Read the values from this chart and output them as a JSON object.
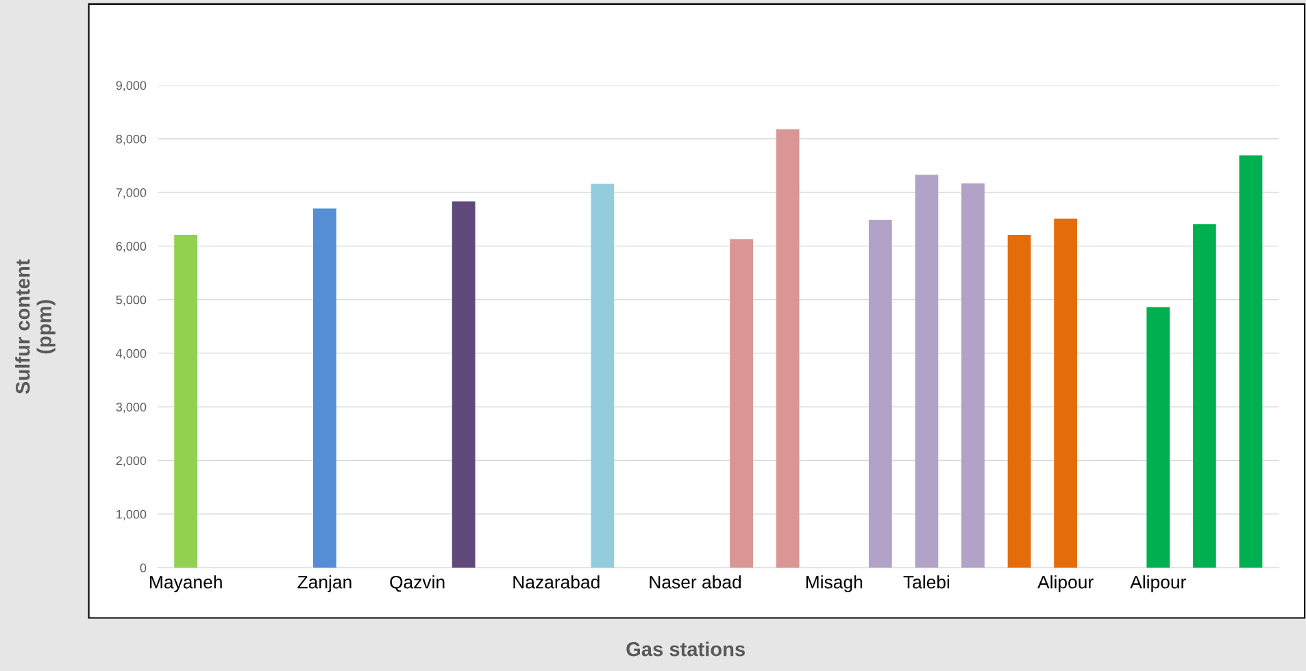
{
  "chart_data": {
    "type": "bar",
    "xlabel": "Gas stations",
    "ylabel": "Sulfur content\n(ppm)",
    "categories": [
      "Mayaneh",
      null,
      null,
      "Zanjan",
      null,
      "Qazvin",
      null,
      null,
      "Nazarabad",
      null,
      null,
      "Naser abad",
      null,
      null,
      "Misagh",
      null,
      "Talebi",
      null,
      null,
      "Alipour",
      null,
      "Alipour",
      null,
      null
    ],
    "values": [
      6210,
      null,
      null,
      6700,
      null,
      null,
      6830,
      null,
      null,
      7160,
      null,
      null,
      6130,
      8180,
      null,
      6490,
      7330,
      7170,
      6210,
      6510,
      null,
      4860,
      6410,
      7690
    ],
    "colors": [
      "#92d050",
      null,
      null,
      "#558ed5",
      null,
      null,
      "#604a7b",
      null,
      null,
      "#93cddd",
      null,
      null,
      "#d99694",
      "#d99694",
      null,
      "#b3a2c7",
      "#b3a2c7",
      "#b3a2c7",
      "#e46c0a",
      "#e46c0a",
      null,
      "#00b050",
      "#00b050",
      "#00b050"
    ],
    "ylim": [
      0,
      9000
    ],
    "yticks": [
      0,
      {
        "value": 1000,
        "label": "1,000"
      },
      {
        "value": 2000,
        "label": "2,000"
      },
      {
        "value": 3000,
        "label": "3,000"
      },
      {
        "value": 4000,
        "label": "4,000"
      },
      {
        "value": 5000,
        "label": "5,000"
      },
      {
        "value": 6000,
        "label": "6,000"
      },
      {
        "value": 7000,
        "label": "7,000"
      },
      {
        "value": 8000,
        "label": "8,000"
      },
      {
        "value": 9000,
        "label": "9,000"
      }
    ],
    "grid": "y"
  }
}
